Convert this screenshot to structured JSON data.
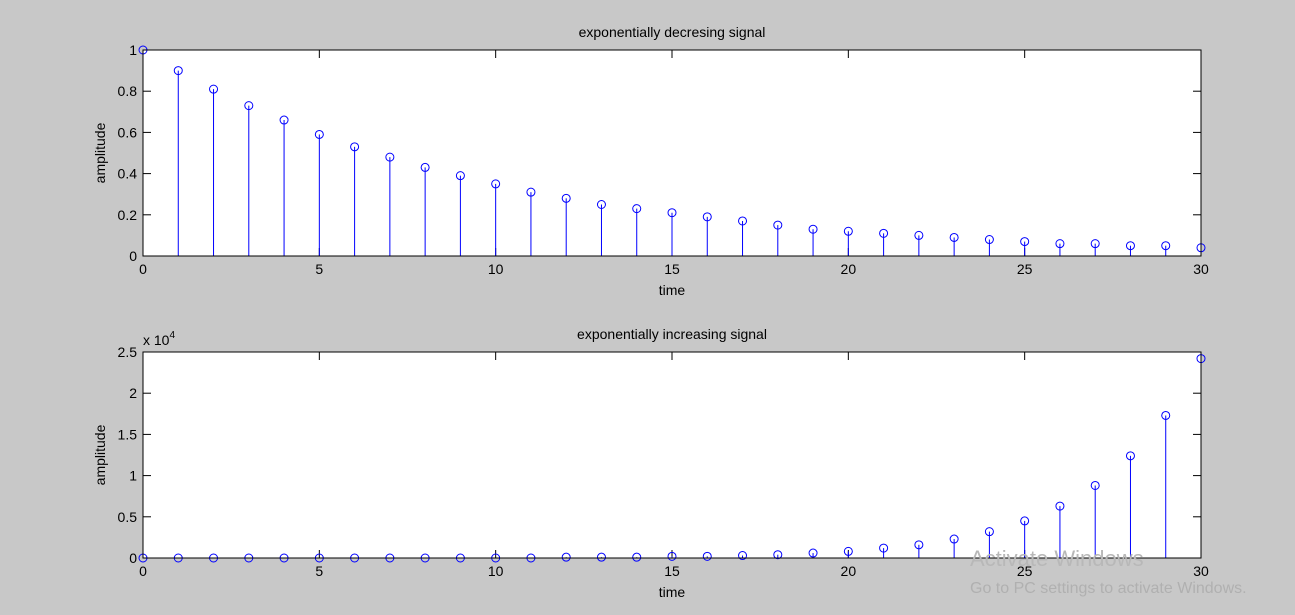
{
  "chart_data": [
    {
      "type": "stem",
      "title": "exponentially decresing signal",
      "xlabel": "time",
      "ylabel": "amplitude",
      "x": [
        0,
        1,
        2,
        3,
        4,
        5,
        6,
        7,
        8,
        9,
        10,
        11,
        12,
        13,
        14,
        15,
        16,
        17,
        18,
        19,
        20,
        21,
        22,
        23,
        24,
        25,
        26,
        27,
        28,
        29,
        30
      ],
      "values": [
        1,
        0.9,
        0.81,
        0.73,
        0.66,
        0.59,
        0.53,
        0.48,
        0.43,
        0.39,
        0.35,
        0.31,
        0.28,
        0.25,
        0.23,
        0.21,
        0.19,
        0.17,
        0.15,
        0.13,
        0.12,
        0.11,
        0.1,
        0.09,
        0.08,
        0.07,
        0.06,
        0.06,
        0.05,
        0.05,
        0.04
      ],
      "color": "#0000ff",
      "xlim": [
        0,
        30
      ],
      "xticks": [
        0,
        5,
        10,
        15,
        20,
        25,
        30
      ],
      "ylim": [
        0,
        1
      ],
      "yticks": [
        0,
        0.2,
        0.4,
        0.6,
        0.8,
        1
      ]
    },
    {
      "type": "stem",
      "title": "exponentially increasing signal",
      "xlabel": "time",
      "ylabel": "amplitude",
      "y_multiplier": "x 10",
      "y_multiplier_exponent": "4",
      "x": [
        0,
        1,
        2,
        3,
        4,
        5,
        6,
        7,
        8,
        9,
        10,
        11,
        12,
        13,
        14,
        15,
        16,
        17,
        18,
        19,
        20,
        21,
        22,
        23,
        24,
        25,
        26,
        27,
        28,
        29,
        30
      ],
      "values": [
        0,
        0,
        0,
        0,
        0,
        0,
        0,
        0,
        0,
        0,
        0,
        0,
        0.01,
        0.01,
        0.01,
        0.02,
        0.02,
        0.03,
        0.04,
        0.06,
        0.08,
        0.12,
        0.16,
        0.23,
        0.32,
        0.45,
        0.63,
        0.88,
        1.24,
        1.73,
        2.42
      ],
      "color": "#0000ff",
      "xlim": [
        0,
        30
      ],
      "xticks": [
        0,
        5,
        10,
        15,
        20,
        25,
        30
      ],
      "ylim": [
        0,
        2.5
      ],
      "yticks": [
        0,
        0.5,
        1,
        1.5,
        2,
        2.5
      ]
    }
  ],
  "watermark": {
    "title": "Activate Windows",
    "text": "Go to PC settings to activate Windows."
  }
}
